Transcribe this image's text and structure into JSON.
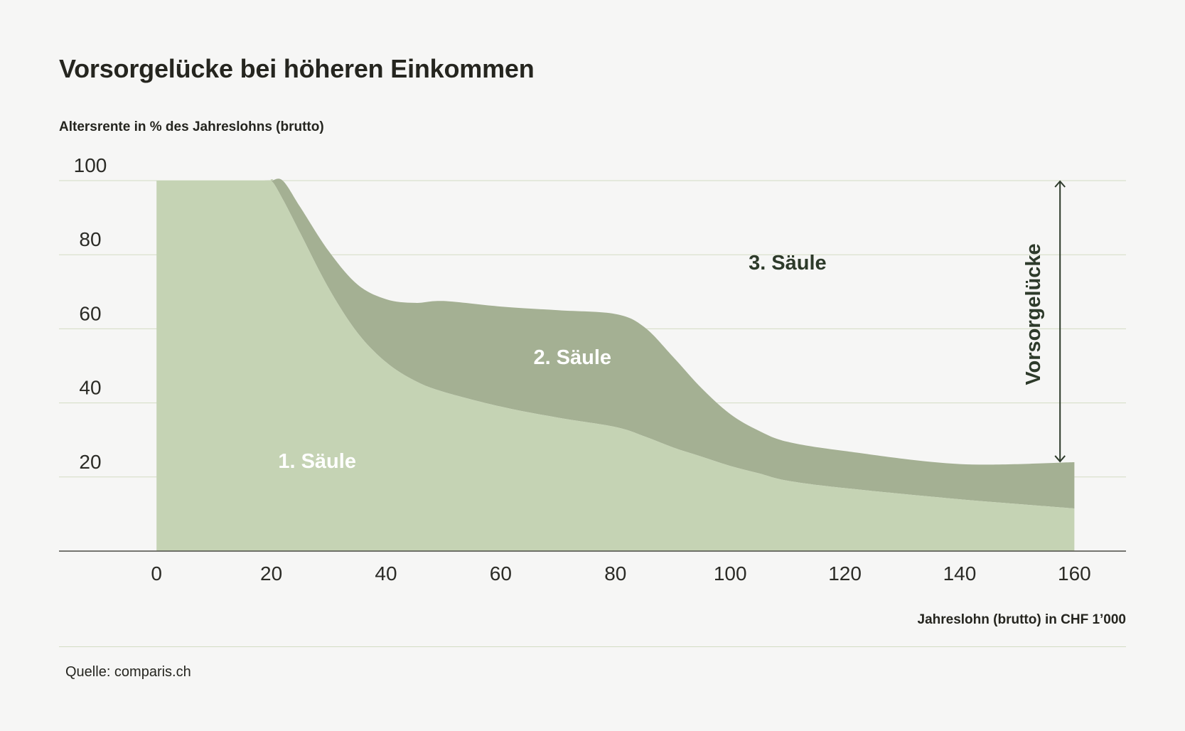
{
  "header": {
    "title": "Vorsorgelücke bei höheren Einkommen",
    "source": "Quelle: comparis.ch"
  },
  "colors": {
    "background": "#f6f6f5",
    "pillar1": "#c5d3b4",
    "pillar2": "#a4b093",
    "gridline": "#d3dcc3",
    "axis": "#4a4a44",
    "text": "#25251f"
  },
  "chart_data": {
    "type": "area",
    "title": "Vorsorgelücke bei höheren Einkommen",
    "xlabel": "Jahreslohn (brutto) in CHF 1’000",
    "ylabel": "Altersrente in % des Jahreslohns (brutto)",
    "xlim": [
      -17,
      169
    ],
    "ylim": [
      0,
      100
    ],
    "x_ticks": [
      "0",
      "20",
      "40",
      "60",
      "80",
      "100",
      "120",
      "140",
      "160"
    ],
    "y_ticks": [
      "20",
      "40",
      "60",
      "80",
      "100"
    ],
    "x_tick_values": [
      0,
      20,
      40,
      60,
      80,
      100,
      120,
      140,
      160
    ],
    "y_tick_values": [
      20,
      40,
      60,
      80,
      100
    ],
    "grid": true,
    "stacked": true,
    "x": [
      0,
      18.5,
      20,
      22,
      25,
      30,
      35,
      40,
      45,
      50,
      60,
      70,
      80,
      85,
      90,
      95,
      100,
      105,
      110,
      120,
      140,
      160
    ],
    "series": [
      {
        "name": "1. Säule",
        "values": [
          100,
          100,
          100,
          95,
          86,
          71,
          59,
          51,
          46,
          43,
          39,
          36,
          33.5,
          31,
          28,
          25.5,
          23,
          21,
          19,
          17,
          14,
          11.5
        ]
      },
      {
        "name": "2. Säule",
        "values": [
          0,
          0,
          0,
          5,
          7,
          10,
          13,
          17,
          21,
          24.5,
          27,
          29,
          30.5,
          29.5,
          24.5,
          18.5,
          14,
          11.5,
          10.5,
          10,
          9.5,
          12.5
        ]
      }
    ],
    "annotations": [
      {
        "text": "3. Säule",
        "x": 110,
        "y": 76
      },
      {
        "text": "Vorsorgelücke",
        "x": 157,
        "y": 62
      }
    ]
  }
}
